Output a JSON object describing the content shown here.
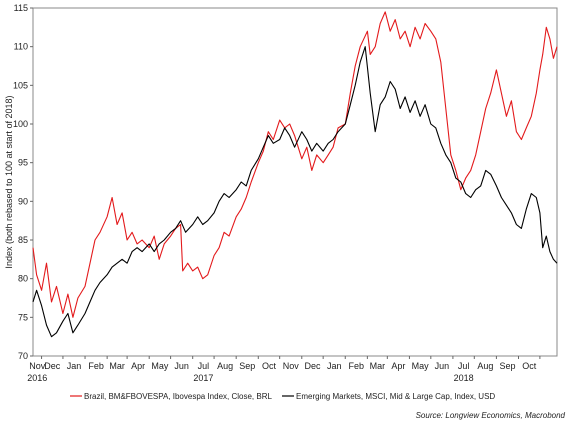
{
  "chart_data": {
    "type": "line",
    "ylabel": "Index (both rebased to 100 at start of 2018)",
    "ylim": [
      70,
      115
    ],
    "yticks": [
      70,
      75,
      80,
      85,
      90,
      95,
      100,
      105,
      110,
      115
    ],
    "x_month_labels": [
      "Nov",
      "Dec",
      "Jan",
      "Feb",
      "Mar",
      "Apr",
      "May",
      "Jun",
      "Jul",
      "Aug",
      "Sep",
      "Oct",
      "Nov",
      "Dec",
      "Jan",
      "Feb",
      "Mar",
      "Apr",
      "May",
      "Jun",
      "Jul",
      "Aug",
      "Sep",
      "Oct"
    ],
    "x_year_labels": [
      {
        "label": "2016",
        "month_index": 0
      },
      {
        "label": "2017",
        "month_index": 8
      },
      {
        "label": "2018",
        "month_index": 20
      }
    ],
    "x_start": "2016-10-20",
    "x_end": "2018-10-25",
    "grid": false,
    "legend_position": "bottom",
    "source": "Source: Longview Economics, Macrobond",
    "series": [
      {
        "name": "Brazil, BM&FBOVESPA, Ibovespa Index, Close, BRL",
        "color": "#e31a1c",
        "points": [
          [
            "2016-10-20",
            84.0
          ],
          [
            "2016-10-25",
            80.5
          ],
          [
            "2016-11-01",
            78.5
          ],
          [
            "2016-11-08",
            82.0
          ],
          [
            "2016-11-15",
            77.0
          ],
          [
            "2016-11-22",
            79.0
          ],
          [
            "2016-12-01",
            75.5
          ],
          [
            "2016-12-08",
            78.0
          ],
          [
            "2016-12-15",
            75.0
          ],
          [
            "2016-12-22",
            77.5
          ],
          [
            "2017-01-01",
            79.0
          ],
          [
            "2017-01-08",
            82.0
          ],
          [
            "2017-01-15",
            85.0
          ],
          [
            "2017-01-22",
            86.0
          ],
          [
            "2017-02-01",
            88.0
          ],
          [
            "2017-02-08",
            90.5
          ],
          [
            "2017-02-15",
            87.0
          ],
          [
            "2017-02-22",
            88.5
          ],
          [
            "2017-03-01",
            85.0
          ],
          [
            "2017-03-08",
            86.0
          ],
          [
            "2017-03-15",
            84.5
          ],
          [
            "2017-03-22",
            85.0
          ],
          [
            "2017-04-01",
            84.0
          ],
          [
            "2017-04-08",
            85.5
          ],
          [
            "2017-04-15",
            82.5
          ],
          [
            "2017-04-22",
            84.5
          ],
          [
            "2017-05-01",
            85.5
          ],
          [
            "2017-05-08",
            86.5
          ],
          [
            "2017-05-15",
            87.0
          ],
          [
            "2017-05-18",
            81.0
          ],
          [
            "2017-05-25",
            82.0
          ],
          [
            "2017-06-01",
            81.0
          ],
          [
            "2017-06-08",
            81.5
          ],
          [
            "2017-06-15",
            80.0
          ],
          [
            "2017-06-22",
            80.5
          ],
          [
            "2017-07-01",
            83.0
          ],
          [
            "2017-07-08",
            84.0
          ],
          [
            "2017-07-15",
            86.0
          ],
          [
            "2017-07-22",
            85.5
          ],
          [
            "2017-08-01",
            88.0
          ],
          [
            "2017-08-08",
            89.0
          ],
          [
            "2017-08-15",
            90.5
          ],
          [
            "2017-08-22",
            92.5
          ],
          [
            "2017-09-01",
            95.0
          ],
          [
            "2017-09-08",
            96.5
          ],
          [
            "2017-09-15",
            99.0
          ],
          [
            "2017-09-22",
            98.0
          ],
          [
            "2017-10-01",
            100.5
          ],
          [
            "2017-10-08",
            99.5
          ],
          [
            "2017-10-15",
            100.0
          ],
          [
            "2017-10-22",
            98.5
          ],
          [
            "2017-11-01",
            95.5
          ],
          [
            "2017-11-08",
            97.0
          ],
          [
            "2017-11-15",
            94.0
          ],
          [
            "2017-11-22",
            96.0
          ],
          [
            "2017-12-01",
            95.0
          ],
          [
            "2017-12-08",
            96.0
          ],
          [
            "2017-12-15",
            97.0
          ],
          [
            "2017-12-22",
            99.5
          ],
          [
            "2018-01-01",
            100.0
          ],
          [
            "2018-01-08",
            104.0
          ],
          [
            "2018-01-15",
            107.5
          ],
          [
            "2018-01-22",
            110.0
          ],
          [
            "2018-02-01",
            112.0
          ],
          [
            "2018-02-05",
            109.0
          ],
          [
            "2018-02-12",
            110.0
          ],
          [
            "2018-02-19",
            113.0
          ],
          [
            "2018-02-26",
            114.5
          ],
          [
            "2018-03-05",
            112.0
          ],
          [
            "2018-03-12",
            113.5
          ],
          [
            "2018-03-19",
            111.0
          ],
          [
            "2018-03-26",
            112.0
          ],
          [
            "2018-04-02",
            110.0
          ],
          [
            "2018-04-09",
            112.5
          ],
          [
            "2018-04-16",
            111.0
          ],
          [
            "2018-04-23",
            113.0
          ],
          [
            "2018-05-01",
            112.0
          ],
          [
            "2018-05-08",
            111.0
          ],
          [
            "2018-05-15",
            108.0
          ],
          [
            "2018-05-22",
            102.0
          ],
          [
            "2018-05-29",
            96.0
          ],
          [
            "2018-06-05",
            94.0
          ],
          [
            "2018-06-12",
            91.5
          ],
          [
            "2018-06-19",
            93.0
          ],
          [
            "2018-06-26",
            94.0
          ],
          [
            "2018-07-03",
            96.0
          ],
          [
            "2018-07-10",
            99.0
          ],
          [
            "2018-07-17",
            102.0
          ],
          [
            "2018-07-24",
            104.0
          ],
          [
            "2018-08-01",
            107.0
          ],
          [
            "2018-08-08",
            104.0
          ],
          [
            "2018-08-15",
            101.0
          ],
          [
            "2018-08-22",
            103.0
          ],
          [
            "2018-08-29",
            99.0
          ],
          [
            "2018-09-05",
            98.0
          ],
          [
            "2018-09-12",
            99.5
          ],
          [
            "2018-09-19",
            101.0
          ],
          [
            "2018-09-26",
            104.0
          ],
          [
            "2018-10-01",
            107.0
          ],
          [
            "2018-10-05",
            109.0
          ],
          [
            "2018-10-10",
            112.5
          ],
          [
            "2018-10-15",
            111.0
          ],
          [
            "2018-10-20",
            108.5
          ],
          [
            "2018-10-25",
            110.0
          ]
        ]
      },
      {
        "name": "Emerging Markets, MSCI, Mid & Large Cap, Index, USD",
        "color": "#000000",
        "points": [
          [
            "2016-10-20",
            77.0
          ],
          [
            "2016-10-25",
            78.5
          ],
          [
            "2016-11-01",
            76.5
          ],
          [
            "2016-11-08",
            74.0
          ],
          [
            "2016-11-15",
            72.5
          ],
          [
            "2016-11-22",
            73.0
          ],
          [
            "2016-12-01",
            74.5
          ],
          [
            "2016-12-08",
            75.5
          ],
          [
            "2016-12-15",
            73.0
          ],
          [
            "2016-12-22",
            74.0
          ],
          [
            "2017-01-01",
            75.5
          ],
          [
            "2017-01-08",
            77.0
          ],
          [
            "2017-01-15",
            78.5
          ],
          [
            "2017-01-22",
            79.5
          ],
          [
            "2017-02-01",
            80.5
          ],
          [
            "2017-02-08",
            81.5
          ],
          [
            "2017-02-15",
            82.0
          ],
          [
            "2017-02-22",
            82.5
          ],
          [
            "2017-03-01",
            82.0
          ],
          [
            "2017-03-08",
            83.5
          ],
          [
            "2017-03-15",
            84.0
          ],
          [
            "2017-03-22",
            83.5
          ],
          [
            "2017-04-01",
            84.5
          ],
          [
            "2017-04-08",
            83.5
          ],
          [
            "2017-04-15",
            84.5
          ],
          [
            "2017-04-22",
            85.0
          ],
          [
            "2017-05-01",
            86.0
          ],
          [
            "2017-05-08",
            86.5
          ],
          [
            "2017-05-15",
            87.5
          ],
          [
            "2017-05-22",
            86.0
          ],
          [
            "2017-06-01",
            87.0
          ],
          [
            "2017-06-08",
            88.0
          ],
          [
            "2017-06-15",
            87.0
          ],
          [
            "2017-06-22",
            87.5
          ],
          [
            "2017-07-01",
            88.5
          ],
          [
            "2017-07-08",
            90.0
          ],
          [
            "2017-07-15",
            91.0
          ],
          [
            "2017-07-22",
            90.5
          ],
          [
            "2017-08-01",
            91.5
          ],
          [
            "2017-08-08",
            92.5
          ],
          [
            "2017-08-15",
            92.0
          ],
          [
            "2017-08-22",
            94.0
          ],
          [
            "2017-09-01",
            95.5
          ],
          [
            "2017-09-08",
            97.0
          ],
          [
            "2017-09-15",
            98.5
          ],
          [
            "2017-09-22",
            97.5
          ],
          [
            "2017-10-01",
            98.0
          ],
          [
            "2017-10-08",
            99.5
          ],
          [
            "2017-10-15",
            98.5
          ],
          [
            "2017-10-22",
            97.0
          ],
          [
            "2017-11-01",
            99.0
          ],
          [
            "2017-11-08",
            98.0
          ],
          [
            "2017-11-15",
            96.5
          ],
          [
            "2017-11-22",
            97.5
          ],
          [
            "2017-12-01",
            96.5
          ],
          [
            "2017-12-08",
            97.5
          ],
          [
            "2017-12-15",
            98.0
          ],
          [
            "2017-12-22",
            99.0
          ],
          [
            "2018-01-01",
            100.0
          ],
          [
            "2018-01-08",
            102.5
          ],
          [
            "2018-01-15",
            105.0
          ],
          [
            "2018-01-22",
            108.0
          ],
          [
            "2018-01-29",
            110.0
          ],
          [
            "2018-02-05",
            104.0
          ],
          [
            "2018-02-12",
            99.0
          ],
          [
            "2018-02-19",
            102.5
          ],
          [
            "2018-02-26",
            103.5
          ],
          [
            "2018-03-05",
            105.5
          ],
          [
            "2018-03-12",
            104.5
          ],
          [
            "2018-03-19",
            102.0
          ],
          [
            "2018-03-26",
            103.5
          ],
          [
            "2018-04-02",
            101.5
          ],
          [
            "2018-04-09",
            103.0
          ],
          [
            "2018-04-16",
            101.0
          ],
          [
            "2018-04-23",
            102.5
          ],
          [
            "2018-05-01",
            100.0
          ],
          [
            "2018-05-08",
            99.5
          ],
          [
            "2018-05-15",
            97.5
          ],
          [
            "2018-05-22",
            96.0
          ],
          [
            "2018-05-29",
            95.0
          ],
          [
            "2018-06-05",
            93.0
          ],
          [
            "2018-06-12",
            92.5
          ],
          [
            "2018-06-19",
            91.0
          ],
          [
            "2018-06-26",
            90.5
          ],
          [
            "2018-07-03",
            91.5
          ],
          [
            "2018-07-10",
            92.0
          ],
          [
            "2018-07-17",
            94.0
          ],
          [
            "2018-07-24",
            93.5
          ],
          [
            "2018-08-01",
            92.0
          ],
          [
            "2018-08-08",
            90.5
          ],
          [
            "2018-08-15",
            89.5
          ],
          [
            "2018-08-22",
            88.5
          ],
          [
            "2018-08-29",
            87.0
          ],
          [
            "2018-09-05",
            86.5
          ],
          [
            "2018-09-12",
            89.0
          ],
          [
            "2018-09-19",
            91.0
          ],
          [
            "2018-09-26",
            90.5
          ],
          [
            "2018-10-01",
            88.5
          ],
          [
            "2018-10-05",
            84.0
          ],
          [
            "2018-10-10",
            85.5
          ],
          [
            "2018-10-15",
            83.5
          ],
          [
            "2018-10-20",
            82.5
          ],
          [
            "2018-10-25",
            82.0
          ]
        ]
      }
    ]
  }
}
